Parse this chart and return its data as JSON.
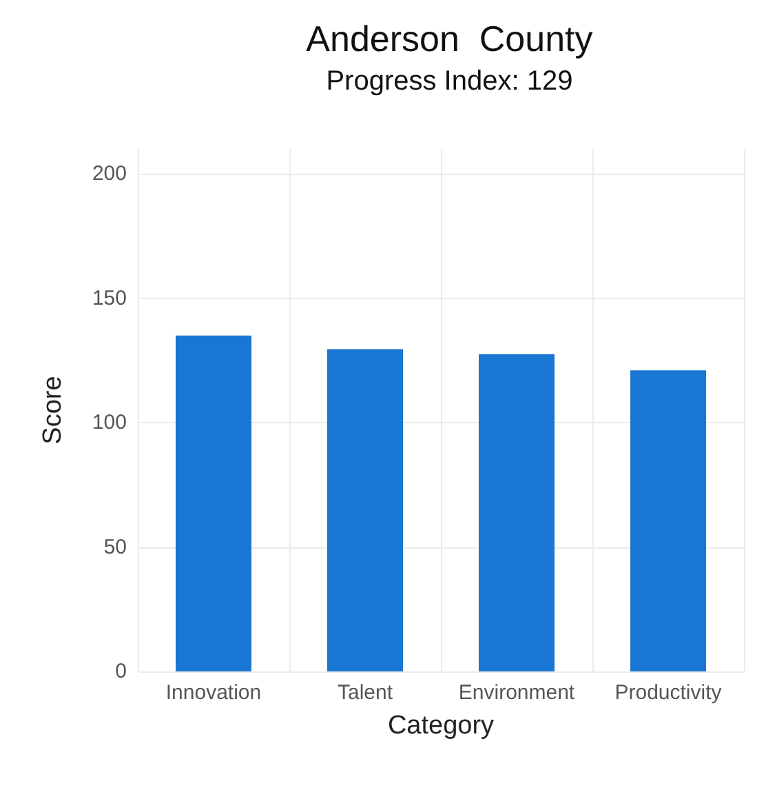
{
  "chart_data": {
    "type": "bar",
    "title": "Anderson  County",
    "subtitle": "Progress Index: 129",
    "xlabel": "Category",
    "ylabel": "Score",
    "categories": [
      "Innovation",
      "Talent",
      "Environment",
      "Productivity"
    ],
    "values": [
      135,
      129.5,
      127.5,
      121
    ],
    "color": "#1976d2",
    "ylim": [
      0,
      210
    ],
    "yticks": [
      0,
      50,
      100,
      150,
      200
    ],
    "grid": true
  }
}
